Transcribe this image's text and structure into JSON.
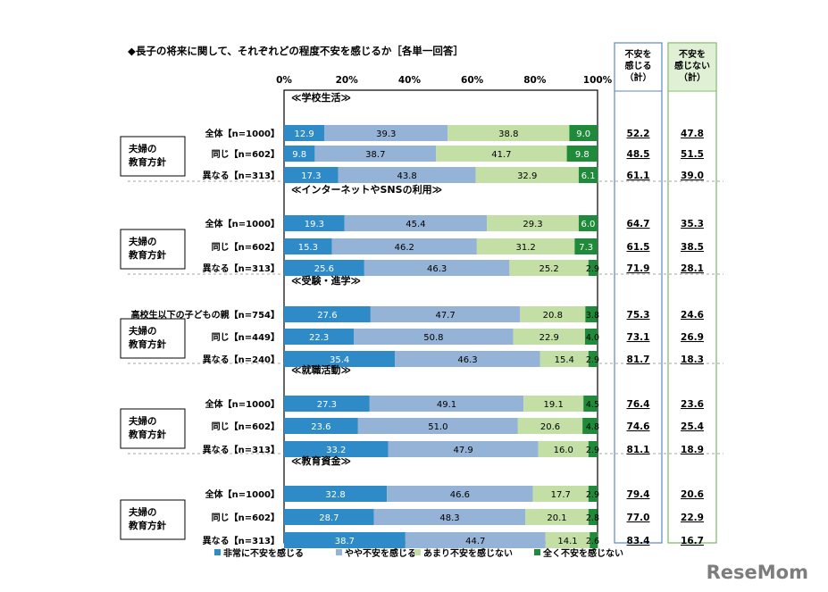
{
  "title": "◆長子の将来に関して、それぞれどの程度不安を感じるか［各単一回答］",
  "logo_text": "ReseMom",
  "columns": {
    "anxious_total": "不安を感じる（計）",
    "not_anxious_total": "不安を感じない（計）"
  },
  "chart_data": {
    "type": "bar",
    "orientation": "horizontal-stacked-100",
    "xlim": [
      0,
      100
    ],
    "ticks": [
      "0%",
      "20%",
      "40%",
      "60%",
      "80%",
      "100%"
    ],
    "legend_position": "bottom",
    "series_names": [
      "非常に不安を感じる",
      "やや不安を感じる",
      "あまり不安を感じない",
      "全く不安を感じない"
    ],
    "colors": [
      "#2e8bc8",
      "#95b3d7",
      "#c4dfa6",
      "#1f8a3a"
    ],
    "group_tag": "夫婦の\n教育方針",
    "sections": [
      {
        "title": "≪学校生活≫",
        "rows": [
          {
            "label": "全体【n=1000】",
            "values": [
              12.9,
              39.3,
              38.8,
              9.0
            ],
            "anxious": "52.2",
            "not_anxious": "47.8"
          },
          {
            "label": "同じ【n=602】",
            "values": [
              9.8,
              38.7,
              41.7,
              9.8
            ],
            "anxious": "48.5",
            "not_anxious": "51.5"
          },
          {
            "label": "異なる【n=313】",
            "values": [
              17.3,
              43.8,
              32.9,
              6.1
            ],
            "anxious": "61.1",
            "not_anxious": "39.0"
          }
        ]
      },
      {
        "title": "≪インターネットやSNSの利用≫",
        "rows": [
          {
            "label": "全体【n=1000】",
            "values": [
              19.3,
              45.4,
              29.3,
              6.0
            ],
            "anxious": "64.7",
            "not_anxious": "35.3"
          },
          {
            "label": "同じ【n=602】",
            "values": [
              15.3,
              46.2,
              31.2,
              7.3
            ],
            "anxious": "61.5",
            "not_anxious": "38.5"
          },
          {
            "label": "異なる【n=313】",
            "values": [
              25.6,
              46.3,
              25.2,
              2.9
            ],
            "anxious": "71.9",
            "not_anxious": "28.1"
          }
        ]
      },
      {
        "title": "≪受験・進学≫",
        "rows": [
          {
            "label": "高校生以下の子どもの親【n=754】",
            "values": [
              27.6,
              47.7,
              20.8,
              3.8
            ],
            "anxious": "75.3",
            "not_anxious": "24.6"
          },
          {
            "label": "同じ【n=449】",
            "values": [
              22.3,
              50.8,
              22.9,
              4.0
            ],
            "anxious": "73.1",
            "not_anxious": "26.9"
          },
          {
            "label": "異なる【n=240】",
            "values": [
              35.4,
              46.3,
              15.4,
              2.9
            ],
            "anxious": "81.7",
            "not_anxious": "18.3"
          }
        ]
      },
      {
        "title": "≪就職活動≫",
        "rows": [
          {
            "label": "全体【n=1000】",
            "values": [
              27.3,
              49.1,
              19.1,
              4.5
            ],
            "anxious": "76.4",
            "not_anxious": "23.6"
          },
          {
            "label": "同じ【n=602】",
            "values": [
              23.6,
              51.0,
              20.6,
              4.8
            ],
            "anxious": "74.6",
            "not_anxious": "25.4"
          },
          {
            "label": "異なる【n=313】",
            "values": [
              33.2,
              47.9,
              16.0,
              2.9
            ],
            "anxious": "81.1",
            "not_anxious": "18.9"
          }
        ]
      },
      {
        "title": "≪教育資金≫",
        "rows": [
          {
            "label": "全体【n=1000】",
            "values": [
              32.8,
              46.6,
              17.7,
              2.9
            ],
            "anxious": "79.4",
            "not_anxious": "20.6"
          },
          {
            "label": "同じ【n=602】",
            "values": [
              28.7,
              48.3,
              20.1,
              2.8
            ],
            "anxious": "77.0",
            "not_anxious": "22.9"
          },
          {
            "label": "異なる【n=313】",
            "values": [
              38.7,
              44.7,
              14.1,
              2.6
            ],
            "anxious": "83.4",
            "not_anxious": "16.7"
          }
        ]
      }
    ]
  }
}
